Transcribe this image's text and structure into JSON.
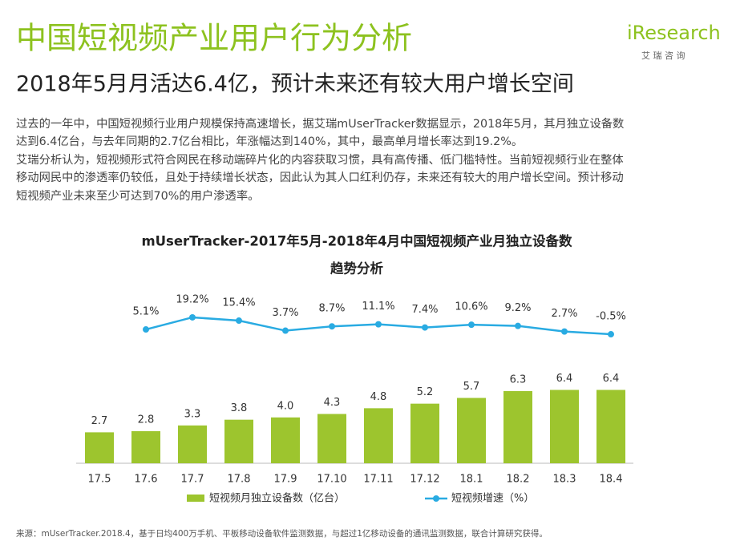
{
  "header": {
    "title": "中国短视频产业用户行为分析",
    "subtitle": "2018年5月月活达6.4亿，预计未来还有较大用户增长空间",
    "logo": "iResearch",
    "logo_sub": "艾 瑞 咨 询"
  },
  "paragraph": [
    "过去的一年中，中国短视频行业用户规模保持高速增长，据艾瑞mUserTracker数据显示，2018年5月，其月独立设备数",
    "达到6.4亿台，与去年同期的2.7亿台相比，年涨幅达到140%，其中，最高单月增长率达到19.2%。",
    "艾瑞分析认为，短视频形式符合网民在移动端碎片化的内容获取习惯，具有高传播、低门槛特性。当前短视频行业在整体",
    "移动网民中的渗透率仍较低，且处于持续增长状态，因此认为其人口红利仍存，未来还有较大的用户增长空间。预计移动",
    "短视频产业未来至少可达到70%的用户渗透率。"
  ],
  "chart_data": {
    "type": "bar_line",
    "title": [
      "mUserTracker-2017年5月-2018年4月中国短视频产业月独立设备数",
      "趋势分析"
    ],
    "categories": [
      "17.5",
      "17.6",
      "17.7",
      "17.8",
      "17.9",
      "17.10",
      "17.11",
      "17.12",
      "18.1",
      "18.2",
      "18.3",
      "18.4"
    ],
    "series": [
      {
        "name": "短视频月独立设备数（亿台）",
        "type": "bar",
        "color": "#9dc52e",
        "values": [
          2.7,
          2.8,
          3.3,
          3.8,
          4.0,
          4.3,
          4.8,
          5.2,
          5.7,
          6.3,
          6.4,
          6.4
        ],
        "value_labels": [
          "2.7",
          "2.8",
          "3.3",
          "3.8",
          "4.0",
          "4.3",
          "4.8",
          "5.2",
          "5.7",
          "6.3",
          "6.4",
          "6.4"
        ]
      },
      {
        "name": "短视频增速（%）",
        "type": "line",
        "color": "#29abe2",
        "values": [
          null,
          5.1,
          19.2,
          15.4,
          3.7,
          8.7,
          11.1,
          7.4,
          10.6,
          9.2,
          2.7,
          -0.5
        ],
        "value_labels": [
          null,
          "5.1%",
          "19.2%",
          "15.4%",
          "3.7%",
          "8.7%",
          "11.1%",
          "7.4%",
          "10.6%",
          "9.2%",
          "2.7%",
          "-0.5%"
        ]
      }
    ]
  },
  "source": "来源：mUserTracker.2018.4，基于日均400万手机、平板移动设备软件监测数据，与超过1亿移动设备的通讯监测数据，联合计算研究获得。"
}
